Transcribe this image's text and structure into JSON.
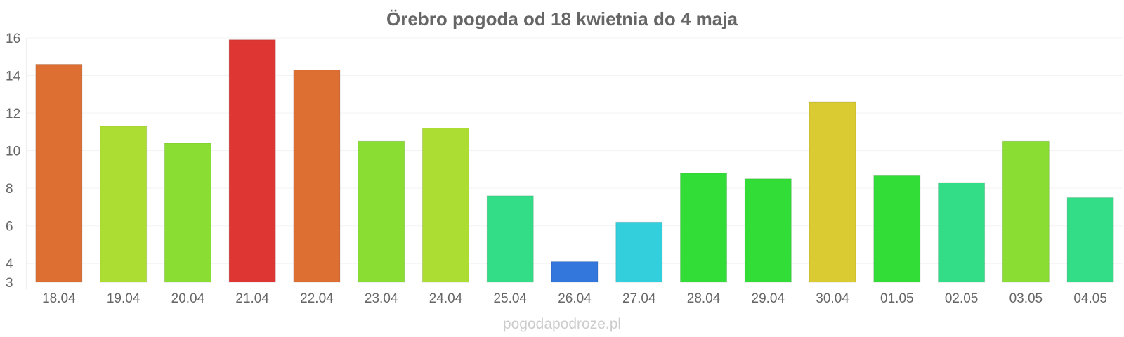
{
  "chart_data": {
    "type": "bar",
    "title": "Örebro pogoda od 18 kwietnia do 4 maja",
    "xlabel": "",
    "ylabel": "",
    "ylim": [
      3,
      16
    ],
    "yticks": [
      3,
      4,
      6,
      8,
      10,
      12,
      14,
      16
    ],
    "grid": true,
    "legend": "none",
    "categories": [
      "18.04",
      "19.04",
      "20.04",
      "21.04",
      "22.04",
      "23.04",
      "24.04",
      "25.04",
      "26.04",
      "27.04",
      "28.04",
      "29.04",
      "30.04",
      "01.05",
      "02.05",
      "03.05",
      "04.05"
    ],
    "values": [
      14.6,
      11.3,
      10.4,
      15.9,
      14.3,
      10.5,
      11.2,
      7.6,
      4.1,
      6.2,
      8.8,
      8.5,
      12.6,
      8.7,
      8.3,
      10.5,
      7.5
    ],
    "colors": [
      "#dd6f33",
      "#acdd33",
      "#8add33",
      "#dd3633",
      "#dd6f33",
      "#8add33",
      "#acdd33",
      "#33dd88",
      "#3377dd",
      "#33cfdd",
      "#33dd38",
      "#33dd38",
      "#dacb33",
      "#33dd38",
      "#33dd88",
      "#8add33",
      "#33dd88"
    ]
  },
  "watermark": "pogodapodroze.pl"
}
